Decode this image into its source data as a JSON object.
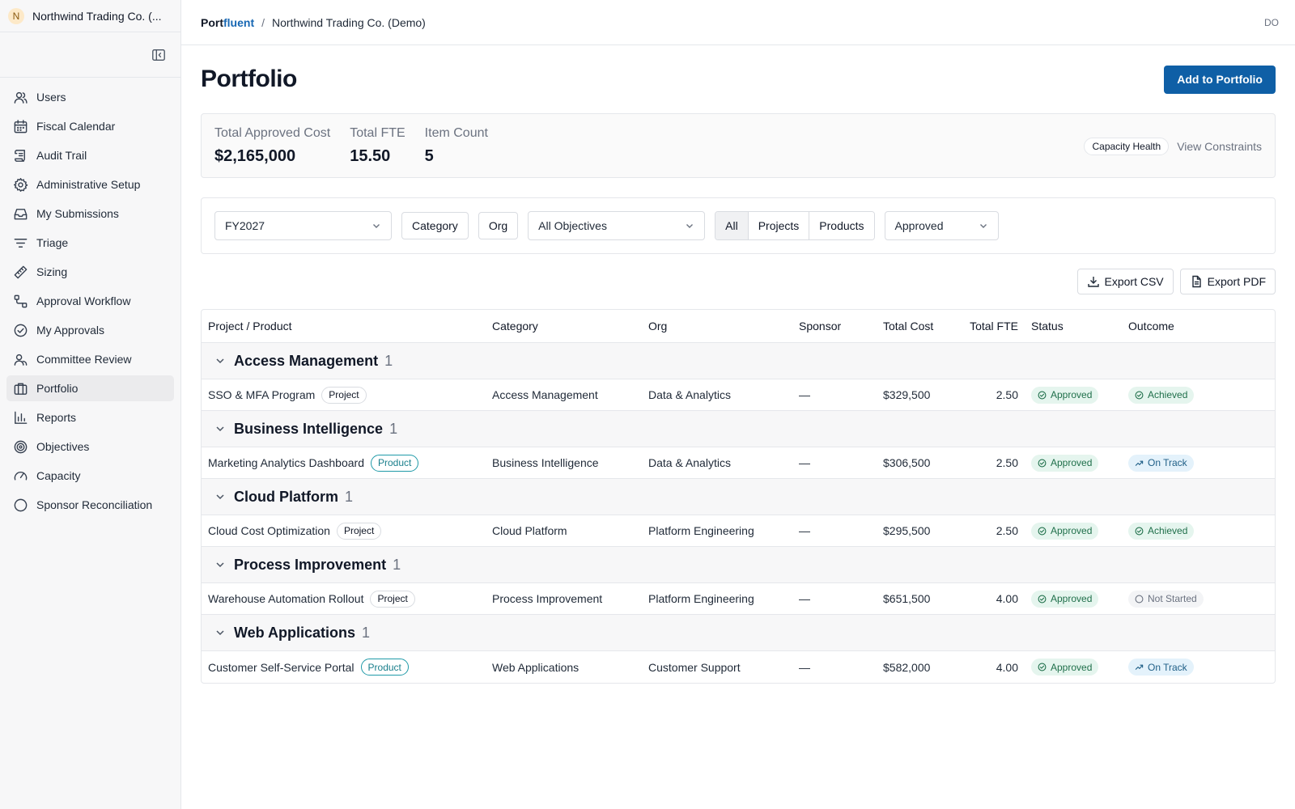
{
  "org": {
    "avatar": "N",
    "name": "Northwind Trading Co. (..."
  },
  "sidebar": {
    "items": [
      {
        "label": "Users",
        "icon": "users-icon"
      },
      {
        "label": "Fiscal Calendar",
        "icon": "calendar-icon"
      },
      {
        "label": "Audit Trail",
        "icon": "scroll-icon"
      },
      {
        "label": "Administrative Setup",
        "icon": "gear-icon"
      },
      {
        "label": "My Submissions",
        "icon": "inbox-icon"
      },
      {
        "label": "Triage",
        "icon": "filter-lines-icon"
      },
      {
        "label": "Sizing",
        "icon": "ruler-icon"
      },
      {
        "label": "Approval Workflow",
        "icon": "workflow-icon"
      },
      {
        "label": "My Approvals",
        "icon": "check-circle-icon"
      },
      {
        "label": "Committee Review",
        "icon": "user-group-icon"
      },
      {
        "label": "Portfolio",
        "icon": "briefcase-icon",
        "active": true
      },
      {
        "label": "Reports",
        "icon": "bar-chart-icon"
      },
      {
        "label": "Objectives",
        "icon": "target-icon"
      },
      {
        "label": "Capacity",
        "icon": "gauge-icon"
      },
      {
        "label": "Sponsor Reconciliation",
        "icon": "circle-icon"
      }
    ]
  },
  "header": {
    "brand_left": "Port",
    "brand_right": "fluent",
    "separator": "/",
    "current": "Northwind Trading Co. (Demo)",
    "user_initials": "DO"
  },
  "page": {
    "title": "Portfolio",
    "add_button": "Add to Portfolio"
  },
  "summary": {
    "total_cost_label": "Total Approved Cost",
    "total_cost_value": "$2,165,000",
    "total_fte_label": "Total FTE",
    "total_fte_value": "15.50",
    "item_count_label": "Item Count",
    "item_count_value": "5",
    "capacity_health": "Capacity Health",
    "view_constraints": "View Constraints"
  },
  "filters": {
    "fiscal_year": "FY2027",
    "category": "Category",
    "org": "Org",
    "objectives": "All Objectives",
    "type_tabs": [
      "All",
      "Projects",
      "Products"
    ],
    "active_type": "All",
    "status": "Approved"
  },
  "exports": {
    "csv": "Export CSV",
    "pdf": "Export PDF"
  },
  "table": {
    "headers": {
      "name": "Project / Product",
      "category": "Category",
      "org": "Org",
      "sponsor": "Sponsor",
      "cost": "Total Cost",
      "fte": "Total FTE",
      "status": "Status",
      "outcome": "Outcome"
    },
    "groups": [
      {
        "title": "Access Management",
        "count": "1",
        "rows": [
          {
            "name": "SSO & MFA Program",
            "type": "Project",
            "category": "Access Management",
            "org": "Data & Analytics",
            "sponsor": "—",
            "cost": "$329,500",
            "fte": "2.50",
            "status": "Approved",
            "outcome": "Achieved"
          }
        ]
      },
      {
        "title": "Business Intelligence",
        "count": "1",
        "rows": [
          {
            "name": "Marketing Analytics Dashboard",
            "type": "Product",
            "category": "Business Intelligence",
            "org": "Data & Analytics",
            "sponsor": "—",
            "cost": "$306,500",
            "fte": "2.50",
            "status": "Approved",
            "outcome": "On Track"
          }
        ]
      },
      {
        "title": "Cloud Platform",
        "count": "1",
        "rows": [
          {
            "name": "Cloud Cost Optimization",
            "type": "Project",
            "category": "Cloud Platform",
            "org": "Platform Engineering",
            "sponsor": "—",
            "cost": "$295,500",
            "fte": "2.50",
            "status": "Approved",
            "outcome": "Achieved"
          }
        ]
      },
      {
        "title": "Process Improvement",
        "count": "1",
        "rows": [
          {
            "name": "Warehouse Automation Rollout",
            "type": "Project",
            "category": "Process Improvement",
            "org": "Platform Engineering",
            "sponsor": "—",
            "cost": "$651,500",
            "fte": "4.00",
            "status": "Approved",
            "outcome": "Not Started"
          }
        ]
      },
      {
        "title": "Web Applications",
        "count": "1",
        "rows": [
          {
            "name": "Customer Self-Service Portal",
            "type": "Product",
            "category": "Web Applications",
            "org": "Customer Support",
            "sponsor": "—",
            "cost": "$582,000",
            "fte": "4.00",
            "status": "Approved",
            "outcome": "On Track"
          }
        ]
      }
    ]
  },
  "colors": {
    "primary": "#0f5fa6",
    "brand_accent": "#1767b3",
    "approved_bg": "#e5f5ee",
    "ontrack_bg": "#e4f2fb"
  }
}
